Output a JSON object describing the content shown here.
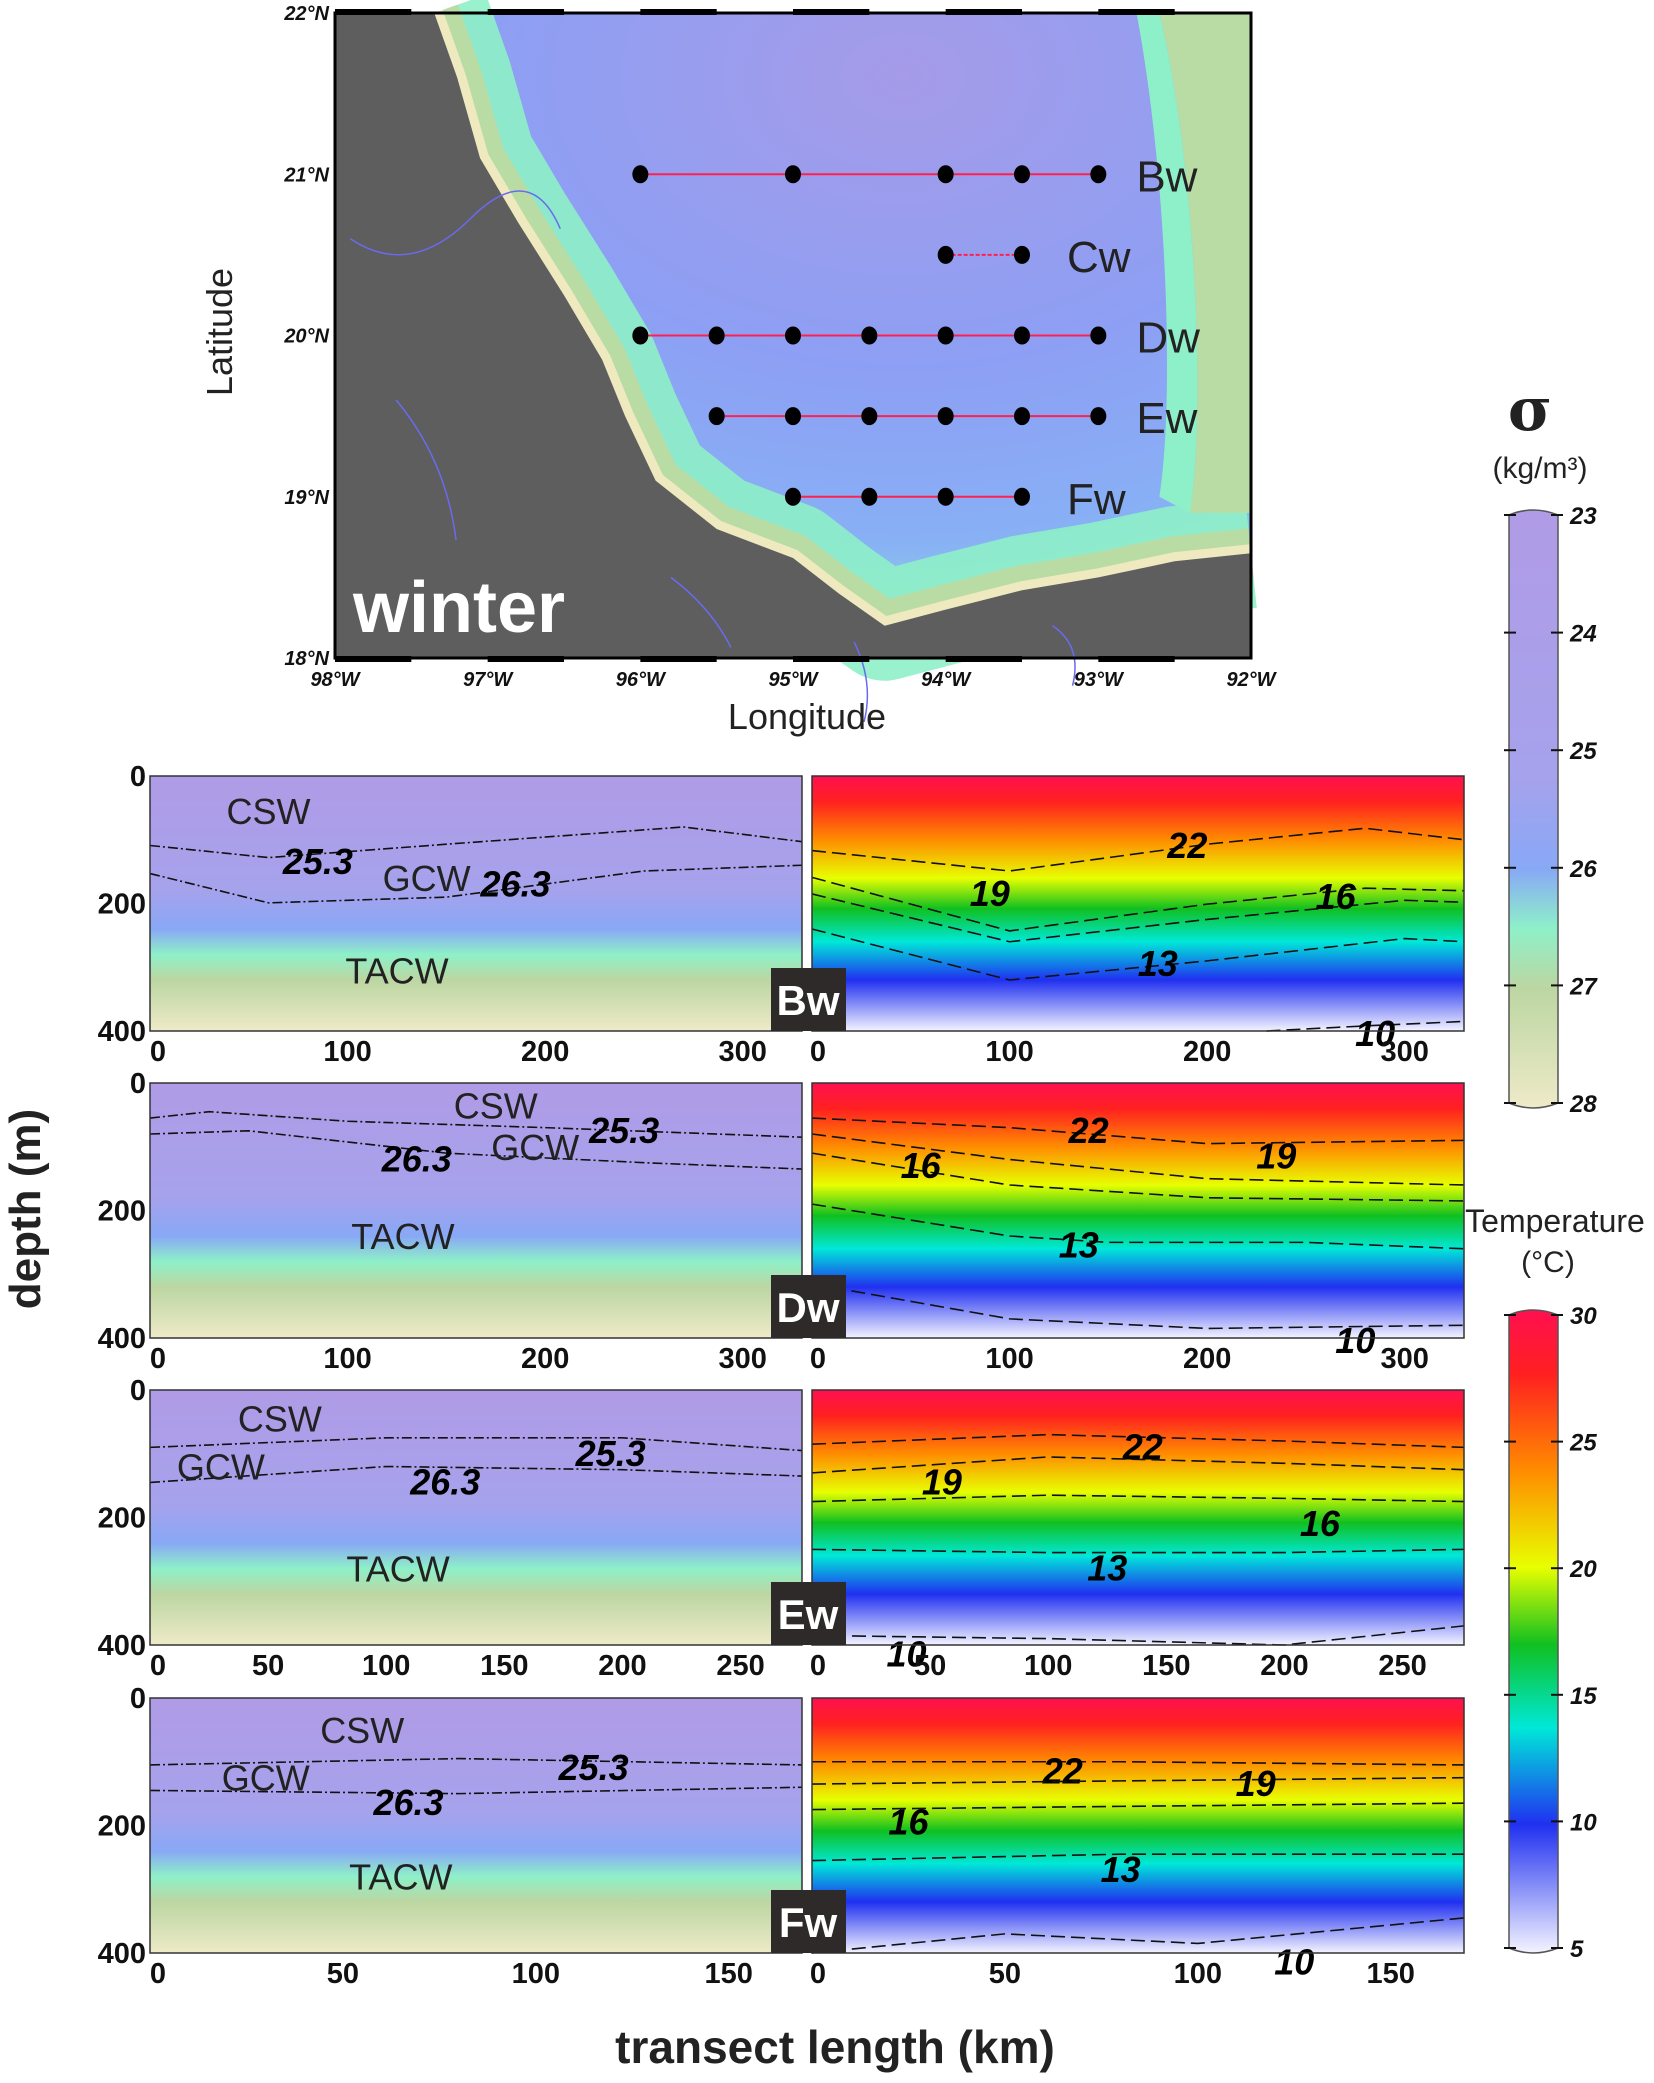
{
  "chart_data": [
    {
      "type": "map",
      "season_label": "winter",
      "xlabel": "Longitude",
      "ylabel": "Latitude",
      "x_ticks": [
        "98°W",
        "97°W",
        "96°W",
        "95°W",
        "94°W",
        "93°W",
        "92°W"
      ],
      "y_ticks": [
        "18°N",
        "19°N",
        "20°N",
        "21°N",
        "22°N"
      ],
      "xlim": [
        -98,
        -92
      ],
      "ylim": [
        18,
        22
      ],
      "colors": {
        "land": "#5e5e5e",
        "deep": "#a59be8",
        "mid": "#8aa6f5",
        "shelf": "#8ef0c8",
        "coast": "#b9dca5",
        "beach": "#efe9bf",
        "track": "#ff2050",
        "rivers": "#6a6af0"
      },
      "transects": [
        {
          "name": "Bw",
          "lat": 21.0,
          "lons": [
            -96,
            -95,
            -94,
            -93.5,
            -93
          ]
        },
        {
          "name": "Cw",
          "lat": 20.5,
          "lons": [
            -94,
            -93.5
          ]
        },
        {
          "name": "Dw",
          "lat": 20.0,
          "lons": [
            -96,
            -95.5,
            -95,
            -94.5,
            -94,
            -93.5,
            -93
          ]
        },
        {
          "name": "Ew",
          "lat": 19.5,
          "lons": [
            -95.5,
            -95,
            -94.5,
            -94,
            -93.5,
            -93
          ]
        },
        {
          "name": "Fw",
          "lat": 19.0,
          "lons": [
            -95,
            -94.5,
            -94,
            -93.5
          ]
        }
      ]
    },
    {
      "type": "contour-sections",
      "ylabel": "depth (m)",
      "xlabel": "transect length (km)",
      "depth_ticks": [
        "0",
        "200",
        "400"
      ],
      "ylim": [
        0,
        400
      ],
      "sections": [
        {
          "name": "Bw",
          "xmax": 330,
          "x_ticks": [
            0,
            100,
            200,
            300
          ],
          "water_masses": [
            {
              "label": "CSW",
              "x": 60,
              "d": 55
            },
            {
              "label": "GCW",
              "x": 140,
              "d": 160
            },
            {
              "label": "TACW",
              "x": 125,
              "d": 305
            }
          ],
          "density": [
            {
              "level": "25.3",
              "x": [
                0,
                60,
                150,
                270,
                330
              ],
              "d": [
                109,
                128,
                107,
                80,
                103
              ],
              "lx": 85,
              "ld": 135
            },
            {
              "level": "26.3",
              "x": [
                0,
                60,
                150,
                250,
                330
              ],
              "d": [
                153,
                199,
                190,
                149,
                140
              ],
              "lx": 185,
              "ld": 170
            }
          ],
          "temperature": [
            {
              "level": "22",
              "x": [
                0,
                100,
                200,
                280,
                330
              ],
              "d": [
                117,
                149,
                107,
                82,
                100
              ],
              "lx": 190,
              "ld": 110
            },
            {
              "level": "19",
              "x": [
                0,
                100,
                200,
                280,
                330
              ],
              "d": [
                159,
                243,
                201,
                176,
                180
              ],
              "lx": 90,
              "ld": 185
            },
            {
              "level": "16",
              "x": [
                0,
                100,
                200,
                300,
                330
              ],
              "d": [
                185,
                260,
                225,
                195,
                198
              ],
              "lx": 265,
              "ld": 190
            },
            {
              "level": "13",
              "x": [
                0,
                100,
                200,
                300,
                330
              ],
              "d": [
                240,
                320,
                290,
                255,
                260
              ],
              "lx": 175,
              "ld": 295
            },
            {
              "level": "10",
              "x": [
                230,
                280,
                330
              ],
              "d": [
                400,
                392,
                385
              ],
              "lx": 285,
              "ld": 405
            }
          ]
        },
        {
          "name": "Dw",
          "xmax": 330,
          "x_ticks": [
            0,
            100,
            200,
            300
          ],
          "water_masses": [
            {
              "label": "CSW",
              "x": 175,
              "d": 35
            },
            {
              "label": "GCW",
              "x": 195,
              "d": 100
            },
            {
              "label": "TACW",
              "x": 128,
              "d": 240
            }
          ],
          "density": [
            {
              "level": "25.3",
              "x": [
                0,
                30,
                100,
                200,
                330
              ],
              "d": [
                55,
                45,
                60,
                70,
                85
              ],
              "lx": 240,
              "ld": 75
            },
            {
              "level": "26.3",
              "x": [
                0,
                50,
                150,
                250,
                330
              ],
              "d": [
                80,
                75,
                110,
                125,
                135
              ],
              "lx": 135,
              "ld": 120
            }
          ],
          "temperature": [
            {
              "level": "22",
              "x": [
                0,
                100,
                200,
                330
              ],
              "d": [
                55,
                70,
                95,
                90
              ],
              "lx": 140,
              "ld": 75
            },
            {
              "level": "19",
              "x": [
                0,
                100,
                200,
                330
              ],
              "d": [
                80,
                120,
                150,
                160
              ],
              "lx": 235,
              "ld": 115
            },
            {
              "level": "16",
              "x": [
                0,
                100,
                200,
                330
              ],
              "d": [
                110,
                160,
                180,
                185
              ],
              "lx": 55,
              "ld": 130
            },
            {
              "level": "13",
              "x": [
                0,
                100,
                150,
                250,
                330
              ],
              "d": [
                190,
                240,
                250,
                250,
                260
              ],
              "lx": 135,
              "ld": 255
            },
            {
              "level": "10",
              "x": [
                0,
                100,
                200,
                330
              ],
              "d": [
                315,
                370,
                385,
                380
              ],
              "lx": 275,
              "ld": 405
            }
          ]
        },
        {
          "name": "Ew",
          "xmax": 276,
          "x_ticks": [
            0,
            50,
            100,
            150,
            200,
            250
          ],
          "water_masses": [
            {
              "label": "CSW",
              "x": 55,
              "d": 45
            },
            {
              "label": "GCW",
              "x": 30,
              "d": 120
            },
            {
              "label": "TACW",
              "x": 105,
              "d": 280
            }
          ],
          "density": [
            {
              "level": "25.3",
              "x": [
                0,
                100,
                200,
                276
              ],
              "d": [
                90,
                75,
                75,
                95
              ],
              "lx": 195,
              "ld": 100
            },
            {
              "level": "26.3",
              "x": [
                0,
                100,
                200,
                276
              ],
              "d": [
                145,
                120,
                125,
                135
              ],
              "lx": 125,
              "ld": 145
            }
          ],
          "temperature": [
            {
              "level": "22",
              "x": [
                0,
                100,
                200,
                276
              ],
              "d": [
                85,
                70,
                80,
                90
              ],
              "lx": 140,
              "ld": 90
            },
            {
              "level": "19",
              "x": [
                0,
                100,
                200,
                276
              ],
              "d": [
                130,
                105,
                115,
                125
              ],
              "lx": 55,
              "ld": 145
            },
            {
              "level": "16",
              "x": [
                0,
                100,
                200,
                276
              ],
              "d": [
                175,
                165,
                170,
                175
              ],
              "lx": 215,
              "ld": 210
            },
            {
              "level": "13",
              "x": [
                0,
                100,
                200,
                276
              ],
              "d": [
                250,
                255,
                255,
                250
              ],
              "lx": 125,
              "ld": 280
            },
            {
              "level": "10",
              "x": [
                0,
                100,
                200,
                276
              ],
              "d": [
                385,
                390,
                400,
                370
              ],
              "lx": 40,
              "ld": 415
            }
          ]
        },
        {
          "name": "Fw",
          "xmax": 169,
          "x_ticks": [
            0,
            50,
            100,
            150
          ],
          "water_masses": [
            {
              "label": "CSW",
              "x": 55,
              "d": 50
            },
            {
              "label": "GCW",
              "x": 30,
              "d": 125
            },
            {
              "label": "TACW",
              "x": 65,
              "d": 280
            }
          ],
          "density": [
            {
              "level": "25.3",
              "x": [
                0,
                80,
                169
              ],
              "d": [
                105,
                95,
                105
              ],
              "lx": 115,
              "ld": 110
            },
            {
              "level": "26.3",
              "x": [
                0,
                80,
                169
              ],
              "d": [
                145,
                150,
                140
              ],
              "lx": 67,
              "ld": 165
            }
          ],
          "temperature": [
            {
              "level": "22",
              "x": [
                0,
                80,
                169
              ],
              "d": [
                100,
                100,
                105
              ],
              "lx": 65,
              "ld": 115
            },
            {
              "level": "19",
              "x": [
                0,
                80,
                169
              ],
              "d": [
                135,
                130,
                125
              ],
              "lx": 115,
              "ld": 135
            },
            {
              "level": "16",
              "x": [
                0,
                80,
                169
              ],
              "d": [
                175,
                170,
                165
              ],
              "lx": 25,
              "ld": 195
            },
            {
              "level": "13",
              "x": [
                0,
                80,
                169
              ],
              "d": [
                255,
                245,
                245
              ],
              "lx": 80,
              "ld": 270
            },
            {
              "level": "10",
              "x": [
                0,
                50,
                100,
                169
              ],
              "d": [
                400,
                370,
                385,
                345
              ],
              "lx": 125,
              "ld": 415
            }
          ]
        }
      ]
    },
    {
      "type": "colorbar",
      "title": "σ",
      "unit": "(kg/m³)",
      "ticks": [
        "23",
        "24",
        "25",
        "26",
        "27",
        "28"
      ],
      "range": [
        23,
        28
      ],
      "colors": [
        "#b09be6",
        "#b09be6",
        "#a8a0ea",
        "#8aa8f5",
        "#8ef0c8",
        "#bcd6a2",
        "#e6e2b8",
        "#eeeac8"
      ]
    },
    {
      "type": "colorbar",
      "title": "Temperature",
      "unit": "(°C)",
      "ticks": [
        "5",
        "10",
        "15",
        "20",
        "25",
        "30"
      ],
      "range": [
        5,
        30
      ],
      "colors": [
        "#f0f0ff",
        "#2030f0",
        "#00e0e0",
        "#10c020",
        "#e8ff00",
        "#ff9000",
        "#ff2020",
        "#ff1050"
      ]
    }
  ]
}
